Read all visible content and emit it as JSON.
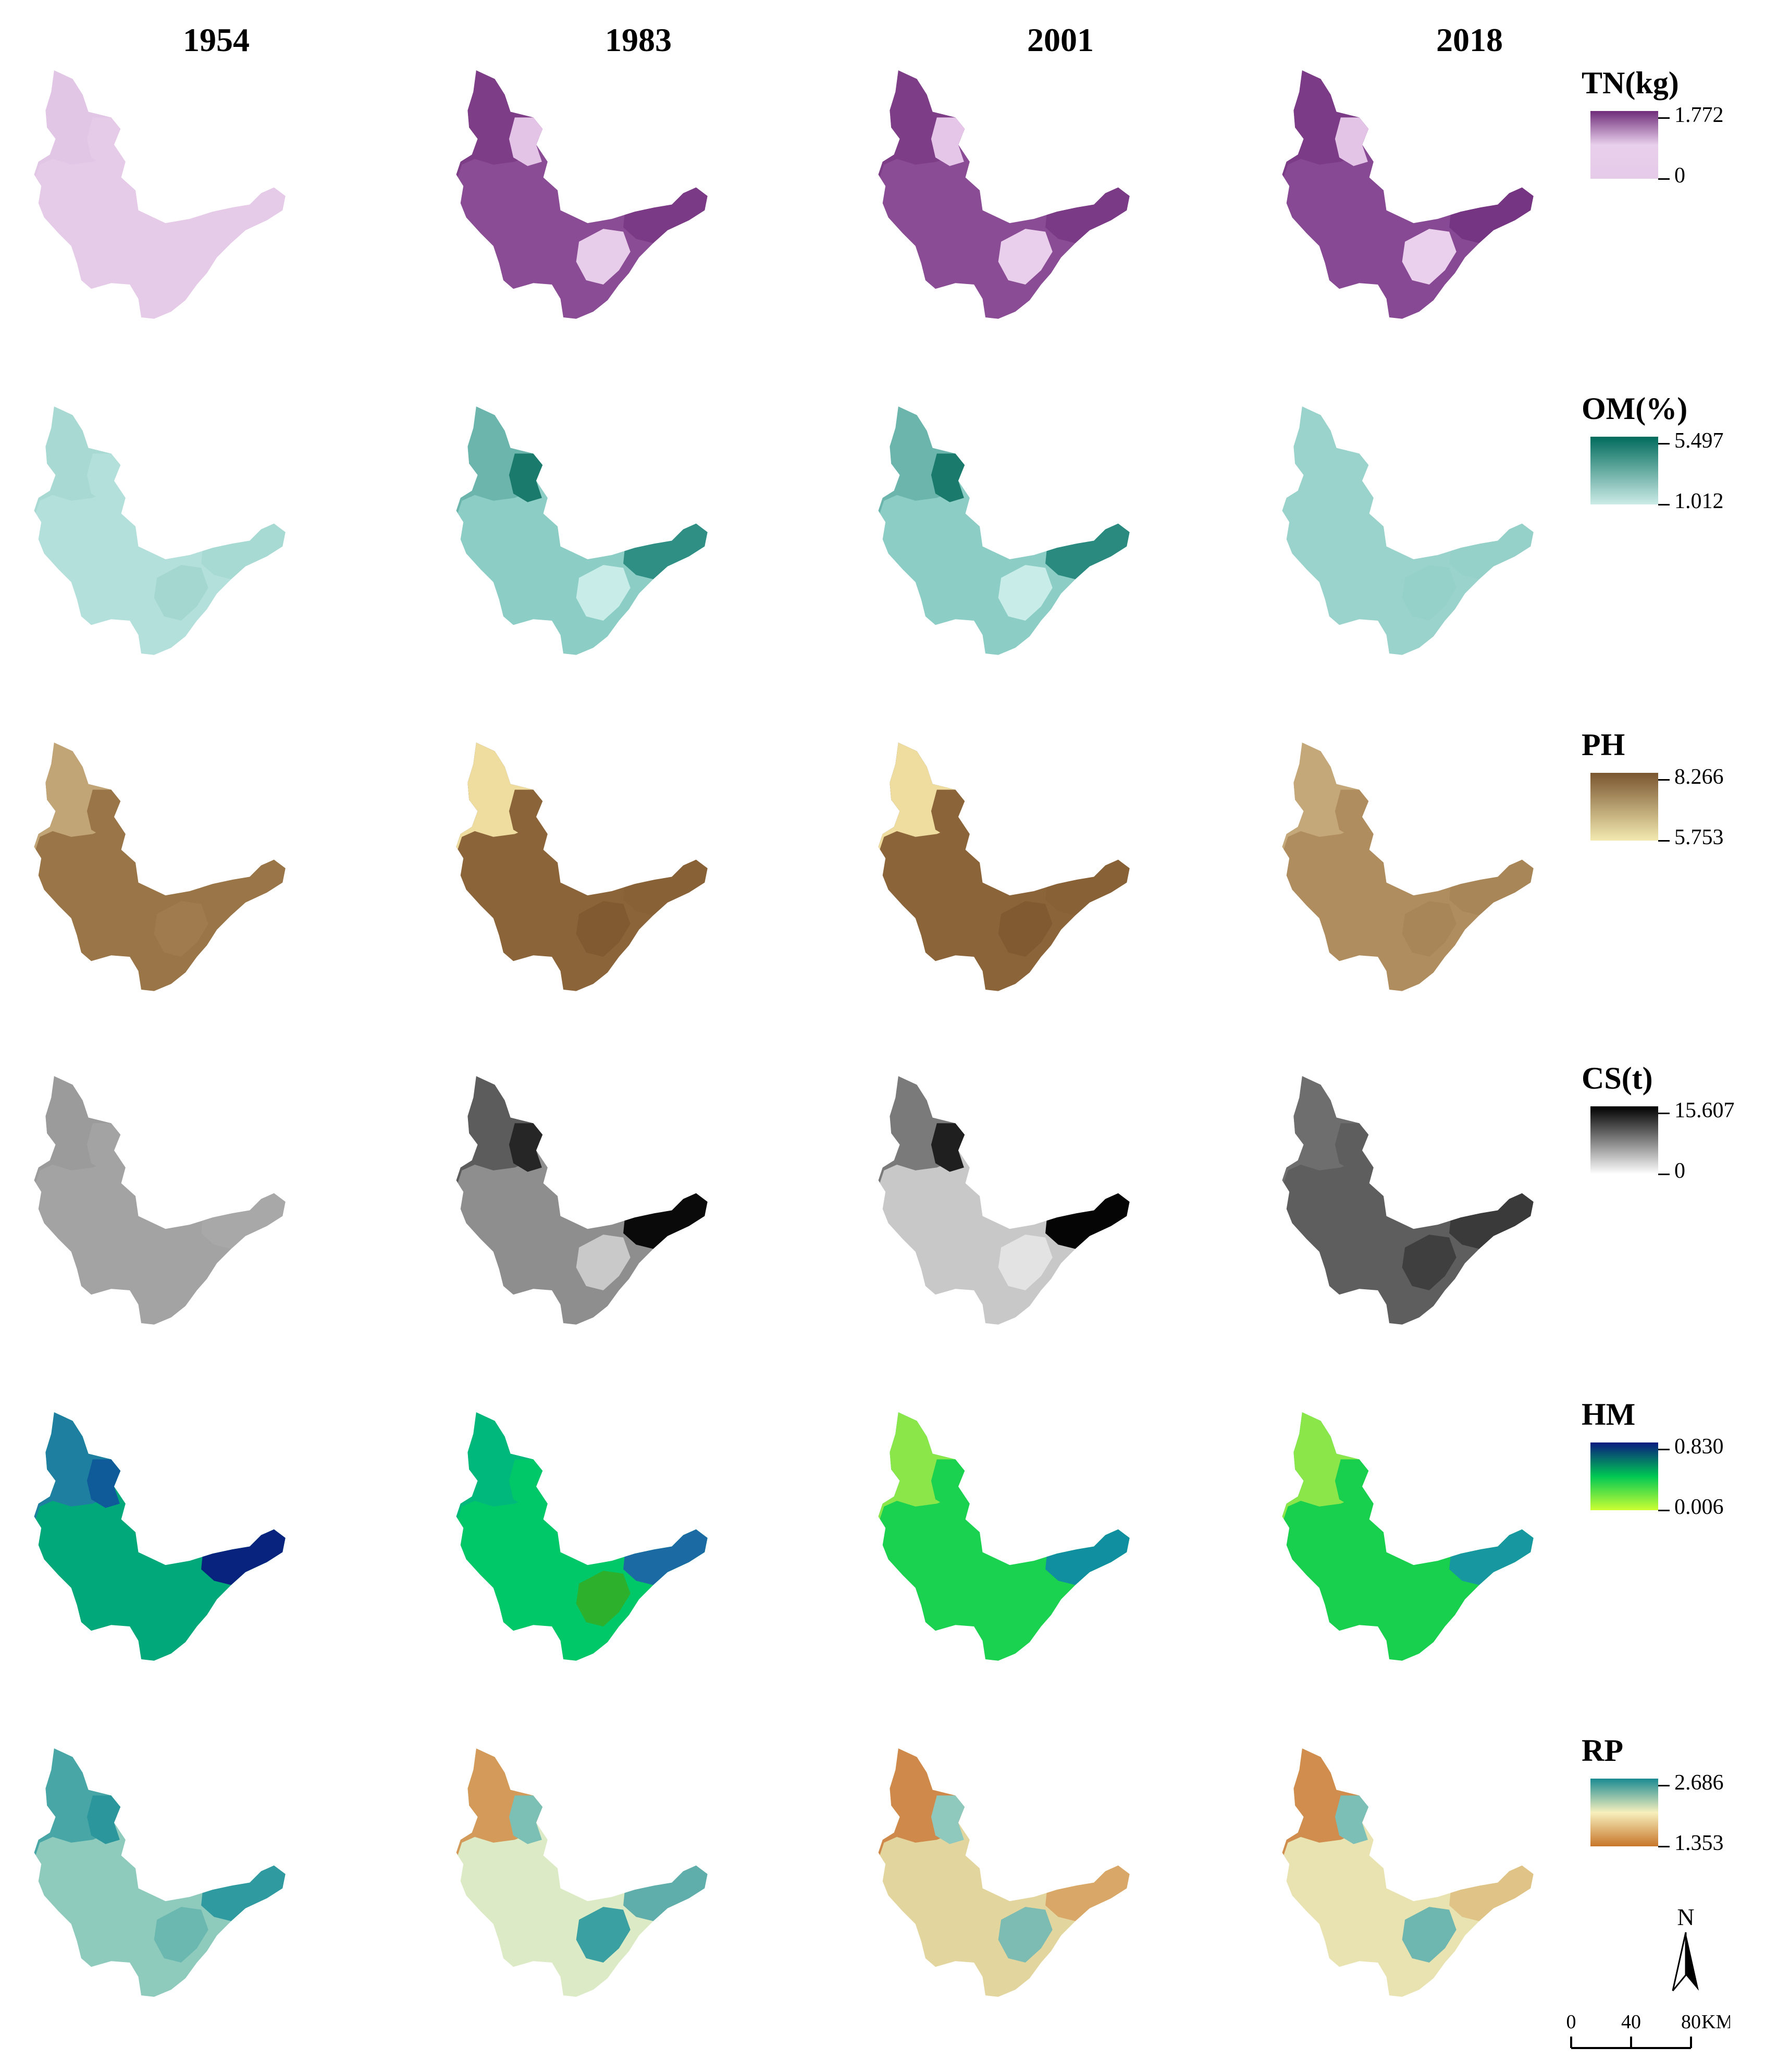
{
  "years": [
    "1954",
    "1983",
    "2001",
    "2018"
  ],
  "rows": [
    {
      "key": "TN",
      "title": "TN(kg)",
      "max": "1.772",
      "min": "0",
      "colors": [
        "#e6cbe9",
        "#e8cfeb",
        "#6f2d7a"
      ],
      "fills": [
        {
          "base": "#e6cbe9",
          "nw": "#e2c6e6",
          "core": "#e6cbe9",
          "east": "#e6cbe9",
          "south": "#e6cbe9"
        },
        {
          "base": "#8a4c94",
          "nw": "#7d3d87",
          "core": "#e3c3e6",
          "east": "#7a3a85",
          "south": "#e8cdea"
        },
        {
          "base": "#8a4c94",
          "nw": "#7d3d87",
          "core": "#e5c6e8",
          "east": "#7a3a85",
          "south": "#e9cfeb"
        },
        {
          "base": "#874993",
          "nw": "#7b3b86",
          "core": "#e3c3e6",
          "east": "#753582",
          "south": "#ead0ec"
        }
      ]
    },
    {
      "key": "OM",
      "title": "OM(%)",
      "max": "5.497",
      "min": "1.012",
      "colors": [
        "#ccebe7",
        "#006b5c"
      ],
      "fills": [
        {
          "base": "#b3e0db",
          "nw": "#a8d9d3",
          "core": "#b3e0db",
          "east": "#a8dad4",
          "south": "#a5d7d1"
        },
        {
          "base": "#8ccdc5",
          "nw": "#6bb5ad",
          "core": "#1a7a6b",
          "east": "#2f8f84",
          "south": "#c8ece8"
        },
        {
          "base": "#8ccdc5",
          "nw": "#6bb5ad",
          "core": "#1a7a6b",
          "east": "#2a8a7f",
          "south": "#c8ece8"
        },
        {
          "base": "#9ad3cc",
          "nw": "#9ad3cc",
          "core": "#9ad3cc",
          "east": "#95d0c9",
          "south": "#95d0c9"
        }
      ]
    },
    {
      "key": "PH",
      "title": "PH",
      "max": "8.266",
      "min": "5.753",
      "colors": [
        "#f3eab0",
        "#7a5530"
      ],
      "fills": [
        {
          "base": "#9a7548",
          "nw": "#c2a577",
          "core": "#9a7548",
          "east": "#9a7548",
          "south": "#a07b4d"
        },
        {
          "base": "#8c6439",
          "nw": "#eedd9f",
          "core": "#8c6439",
          "east": "#896136",
          "south": "#825a31"
        },
        {
          "base": "#8c6439",
          "nw": "#eedd9f",
          "core": "#8c6439",
          "east": "#896136",
          "south": "#825a31"
        },
        {
          "base": "#b08d5f",
          "nw": "#c4a87a",
          "core": "#b08d5f",
          "east": "#a98657",
          "south": "#a98657"
        }
      ]
    },
    {
      "key": "CS",
      "title": "CS(t)",
      "max": "15.607",
      "min": "0",
      "colors": [
        "#ffffff",
        "#000000"
      ],
      "fills": [
        {
          "base": "#a3a3a3",
          "nw": "#9b9b9b",
          "core": "#a3a3a3",
          "east": "#a8a8a8",
          "south": "#a3a3a3"
        },
        {
          "base": "#8e8e8e",
          "nw": "#5c5c5c",
          "core": "#262626",
          "east": "#0a0a0a",
          "south": "#c9c9c9"
        },
        {
          "base": "#c8c8c8",
          "nw": "#7a7a7a",
          "core": "#1f1f1f",
          "east": "#050505",
          "south": "#e3e3e3"
        },
        {
          "base": "#5e5e5e",
          "nw": "#6e6e6e",
          "core": "#5e5e5e",
          "east": "#3a3a3a",
          "south": "#3f3f3f"
        }
      ]
    },
    {
      "key": "HM",
      "title": "HM",
      "max": "0.830",
      "min": "0.006",
      "colors": [
        "#ccff33",
        "#00c853",
        "#0a1a80"
      ],
      "fills": [
        {
          "base": "#00a87a",
          "nw": "#1f7fa0",
          "core": "#0f5b9a",
          "east": "#07237d",
          "south": "#00a87a"
        },
        {
          "base": "#00c767",
          "nw": "#00b87c",
          "core": "#00c767",
          "east": "#1c6aa3",
          "south": "#2db12d"
        },
        {
          "base": "#1ad24f",
          "nw": "#8be64a",
          "core": "#1ad24f",
          "east": "#0f8fa0",
          "south": "#1ad24f"
        },
        {
          "base": "#18d04e",
          "nw": "#8be64a",
          "core": "#18d04e",
          "east": "#1797a0",
          "south": "#18d04e"
        }
      ]
    },
    {
      "key": "RP",
      "title": "RP",
      "max": "2.686",
      "min": "1.353",
      "colors": [
        "#c8762a",
        "#f7f0bd",
        "#1a8a92"
      ],
      "fills": [
        {
          "base": "#8fcbbd",
          "nw": "#48a7a6",
          "core": "#2b979c",
          "east": "#2f9aa0",
          "south": "#6ab8b0"
        },
        {
          "base": "#dcebc6",
          "nw": "#d49a5a",
          "core": "#7bbfb5",
          "east": "#5faeab",
          "south": "#3aa0a2"
        },
        {
          "base": "#e3d59e",
          "nw": "#cf8a4b",
          "core": "#8fc9bd",
          "east": "#d9a868",
          "south": "#7cbcb3"
        },
        {
          "base": "#e8e3b0",
          "nw": "#d18d4e",
          "core": "#7cbfb6",
          "east": "#e0c387",
          "south": "#6eb6b0"
        }
      ]
    }
  ],
  "north_label": "N",
  "scale": {
    "ticks": [
      "0",
      "40",
      "80"
    ],
    "unit": "KM"
  }
}
